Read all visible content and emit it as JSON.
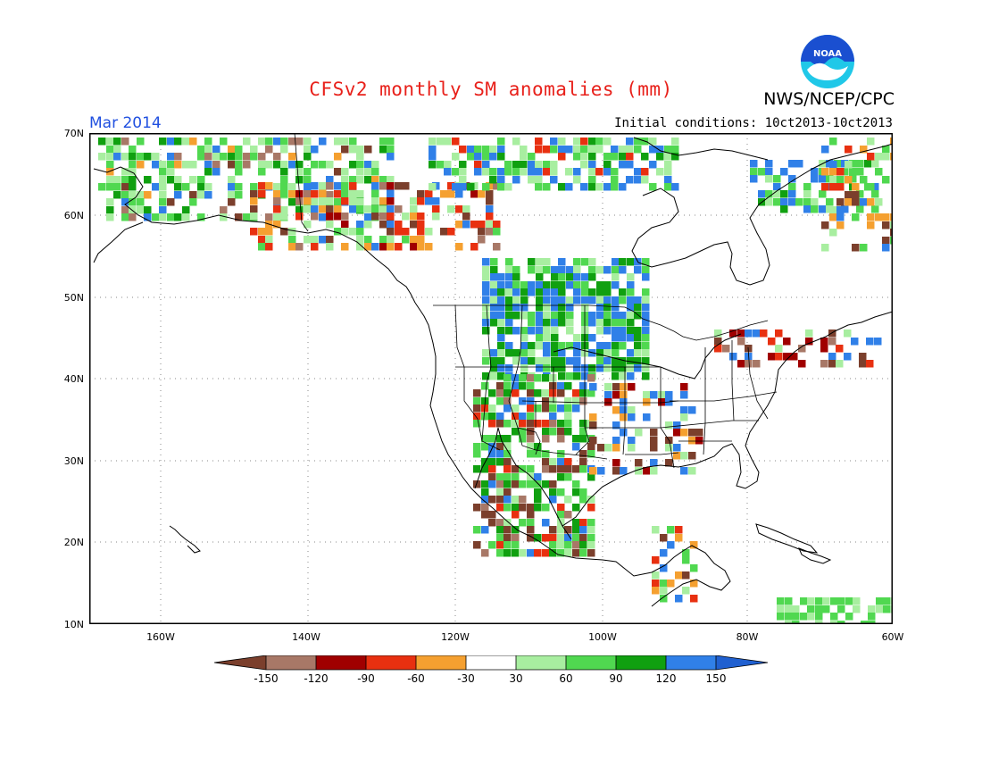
{
  "header": {
    "title": "CFSv2 monthly SM anomalies (mm)",
    "agency": "NWS/NCEP/CPC",
    "logo_text": "NOAA",
    "valid_month": "Mar 2014",
    "initial_conditions": "Initial conditions: 10ct2013-10ct2013"
  },
  "axes": {
    "lat_labels": [
      "70N",
      "60N",
      "50N",
      "40N",
      "30N",
      "20N",
      "10N"
    ],
    "lon_labels": [
      "160W",
      "140W",
      "120W",
      "100W",
      "80W",
      "60W"
    ]
  },
  "colorbar": {
    "labels": [
      "-150",
      "-120",
      "-90",
      "-60",
      "-30",
      "30",
      "60",
      "90",
      "120",
      "150"
    ],
    "colors": [
      "#7b3f2c",
      "#a87867",
      "#a00000",
      "#e83010",
      "#f5a030",
      "#ffffff",
      "#a8eea0",
      "#50d850",
      "#10a010",
      "#3080e8",
      "#2060d0"
    ]
  },
  "colors": {
    "title": "#e8201a",
    "valid_month": "#2050e0",
    "noaa_blue": "#1a4fd0",
    "noaa_cyan": "#20c8e8"
  }
}
